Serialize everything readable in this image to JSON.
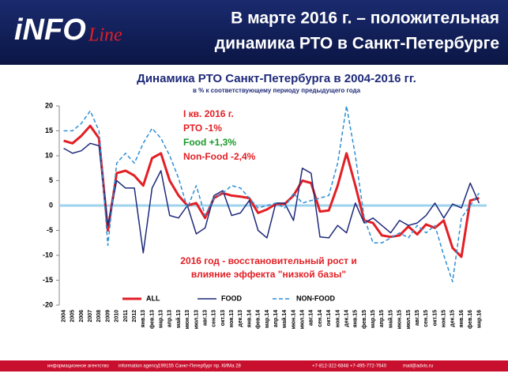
{
  "header": {
    "logo_left": "iNFO",
    "logo_right": "Line",
    "title": [
      "В марте 2016 г. – положительная",
      "динамика РТО в Санкт-Петербурге"
    ]
  },
  "chart_data": {
    "type": "line",
    "title": "Динамика РТО Санкт-Петербурга в 2004-2016 гг.",
    "subtitle": "в % к соответствующему периоду предыдущего года",
    "categories": [
      "2004",
      "2005",
      "2006",
      "2007",
      "2008",
      "2009",
      "2010",
      "2011",
      "2012",
      "янв.13",
      "фев.13",
      "мар.13",
      "апр.13",
      "май.13",
      "июн.13",
      "июл.13",
      "авг.13",
      "сен.13",
      "окт.13",
      "ноя.13",
      "дек.13",
      "янв.14",
      "фев.14",
      "мар.14",
      "апр.14",
      "май.14",
      "июн.14",
      "июл.14",
      "авг.14",
      "сен.14",
      "окт.14",
      "ноя.14",
      "дек.14",
      "янв.15",
      "фев.15",
      "мар.15",
      "апр.15",
      "май.15",
      "июн.15",
      "июл.15",
      "авг.15",
      "сен.15",
      "окт.15",
      "ноя.15",
      "дек.15",
      "янв.16",
      "фев.16",
      "мар.16"
    ],
    "series": [
      {
        "name": "ALL",
        "color": "#e31e24",
        "width": 3,
        "dash": false,
        "values": [
          13,
          12.5,
          14,
          16,
          13.5,
          -5,
          6.5,
          7,
          6,
          4,
          9.5,
          10.5,
          5,
          2,
          0,
          0.5,
          -2.5,
          1.5,
          2.5,
          2,
          1.8,
          1.5,
          -1.5,
          -0.8,
          0.3,
          0.3,
          2,
          5,
          4.5,
          -1.2,
          -1,
          4,
          10.5,
          4,
          -3,
          -3.5,
          -6,
          -6.3,
          -6,
          -4.2,
          -5.8,
          -3.8,
          -4.5,
          -3,
          -8.5,
          -10.3,
          1,
          1.5
        ]
      },
      {
        "name": "FOOD",
        "color": "#1f2a7a",
        "width": 1.5,
        "dash": false,
        "values": [
          11.5,
          10.5,
          11,
          12.5,
          12,
          -4,
          5,
          3.5,
          3.5,
          -9.5,
          3.5,
          7,
          -2,
          -2.5,
          0,
          -5.7,
          -4.5,
          2,
          3,
          -2,
          -1.5,
          1,
          -5,
          -6.5,
          0.5,
          0.5,
          -3,
          7.5,
          6.5,
          -6.3,
          -6.5,
          -4,
          -5.5,
          0.5,
          -3.5,
          -2.5,
          -4,
          -5.5,
          -3,
          -4,
          -3.5,
          -2,
          0.5,
          -2.5,
          0.3,
          -0.5,
          4.5,
          0.5
        ]
      },
      {
        "name": "NON-FOOD",
        "color": "#2d8fd5",
        "width": 1.5,
        "dash": true,
        "values": [
          15,
          15,
          16.5,
          19,
          15,
          -8,
          8.5,
          10.5,
          8.5,
          12.5,
          15.5,
          13.5,
          10,
          5.5,
          -0.5,
          4,
          -2,
          1.5,
          2.5,
          4,
          3.5,
          1.5,
          -0.5,
          0,
          0.5,
          -0.5,
          2.5,
          0.5,
          1,
          1.5,
          2,
          8.5,
          20,
          10,
          -2.5,
          -7.5,
          -7.5,
          -6.5,
          -5.5,
          -6.5,
          -4,
          -5.5,
          -4,
          -10,
          -15.3,
          -2.5,
          0,
          2.5
        ]
      }
    ],
    "ylim": [
      -20,
      20
    ],
    "yticks": [
      20,
      15,
      10,
      5,
      0,
      -5,
      -10,
      -15,
      -20
    ],
    "grid": false,
    "legend": "bottom-left",
    "annotations": [
      "I кв. 2016 г.",
      "РТО   -1%",
      "Food  +1,3%",
      "Non-Food  -2,4%",
      "2016 год - восстановительный рост и",
      "влияние эффекта \"низкой базы\""
    ]
  },
  "footer": {
    "items": [
      "информационное агентство",
      "information agency",
      "199155 Санкт-Петербург пр. КИМа 28",
      "+7-812-322-6848  +7-495-772-7640",
      "mail@advis.ru"
    ]
  }
}
